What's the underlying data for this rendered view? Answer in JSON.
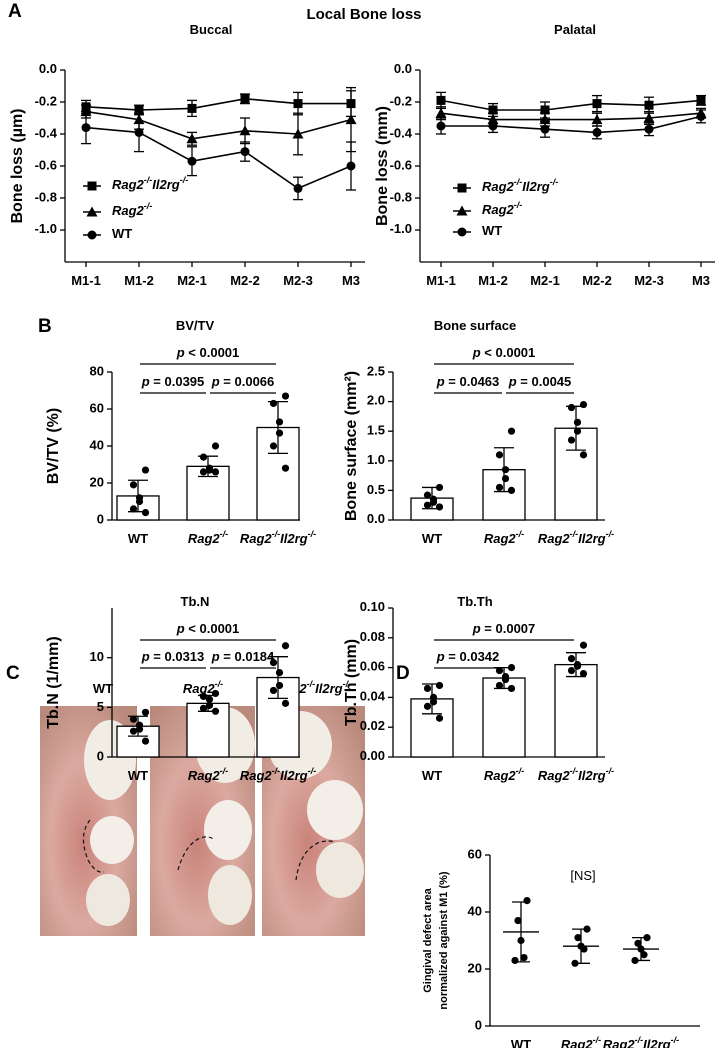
{
  "figure": {
    "title": "Local Bone loss",
    "panel_labels": [
      "A",
      "B",
      "C",
      "D"
    ]
  },
  "photos": {
    "labels": [
      "WT",
      "Rag2-/-",
      "Rag2-/-Il2rg-/-"
    ]
  },
  "chart_data": [
    {
      "type": "line",
      "title": "Buccal",
      "ylabel": "Bone loss (µm)",
      "categories": [
        "M1-1",
        "M1-2",
        "M2-1",
        "M2-2",
        "M2-3",
        "M3"
      ],
      "ylim": [
        -1.2,
        0
      ],
      "yticks": [
        {
          "value": 0,
          "label": "0.0"
        },
        -0.2,
        -0.4,
        -0.6,
        -0.8,
        {
          "value": -1,
          "label": "-1.0"
        }
      ],
      "series": [
        {
          "name": "Rag2-/-Il2rg-/-",
          "color": "#000000",
          "marker": "square",
          "values": [
            -0.23,
            -0.25,
            -0.24,
            -0.18,
            -0.21,
            -0.21
          ],
          "errors": [
            0.04,
            0.03,
            0.05,
            0.03,
            0.07,
            0.08
          ]
        },
        {
          "name": "Rag2-/-",
          "color": "#000000",
          "marker": "triangle",
          "values": [
            -0.26,
            -0.31,
            -0.43,
            -0.38,
            -0.4,
            -0.31
          ],
          "errors": [
            0.04,
            0.06,
            0.04,
            0.08,
            0.13,
            0.2
          ]
        },
        {
          "name": "WT",
          "color": "#000000",
          "marker": "circle",
          "values": [
            -0.36,
            -0.39,
            -0.57,
            -0.51,
            -0.74,
            -0.6
          ],
          "errors": [
            0.1,
            0.12,
            0.09,
            0.06,
            0.07,
            0.15
          ]
        }
      ]
    },
    {
      "type": "line",
      "title": "Palatal",
      "ylabel": "Bone loss (mm)",
      "categories": [
        "M1-1",
        "M1-2",
        "M2-1",
        "M2-2",
        "M2-3",
        "M3"
      ],
      "ylim": [
        -1.2,
        0
      ],
      "yticks": [
        {
          "value": 0,
          "label": "0.0"
        },
        -0.2,
        -0.4,
        -0.6,
        -0.8,
        {
          "value": -1,
          "label": "-1.0"
        }
      ],
      "series": [
        {
          "name": "Rag2-/-Il2rg-/-",
          "color": "#000000",
          "marker": "square",
          "values": [
            -0.19,
            -0.25,
            -0.25,
            -0.21,
            -0.22,
            -0.19
          ],
          "errors": [
            0.05,
            0.04,
            0.05,
            0.05,
            0.05,
            0.03
          ]
        },
        {
          "name": "Rag2-/-",
          "color": "#000000",
          "marker": "triangle",
          "values": [
            -0.27,
            -0.31,
            -0.31,
            -0.31,
            -0.3,
            -0.27
          ],
          "errors": [
            0.04,
            0.04,
            0.04,
            0.04,
            0.04,
            0.03
          ]
        },
        {
          "name": "WT",
          "color": "#000000",
          "marker": "circle",
          "values": [
            -0.35,
            -0.35,
            -0.37,
            -0.39,
            -0.37,
            -0.29
          ],
          "errors": [
            0.05,
            0.04,
            0.05,
            0.04,
            0.04,
            0.04
          ]
        }
      ]
    },
    {
      "type": "bar",
      "title": "BV/TV",
      "ylabel": "BV/TV (%)",
      "categories": [
        "WT",
        "Rag2-/-",
        "Rag2-/-Il2rg-/-"
      ],
      "values": [
        13,
        29,
        50
      ],
      "errors": [
        8.5,
        5.5,
        14
      ],
      "points": [
        [
          27,
          19,
          12,
          10,
          6,
          4
        ],
        [
          40,
          34,
          28,
          27,
          26,
          26
        ],
        [
          67,
          63,
          53,
          47,
          40,
          28
        ]
      ],
      "ylim": [
        0,
        80
      ],
      "yticks": [
        0,
        20,
        40,
        60,
        80
      ],
      "comparisons": [
        {
          "groups": [
            0,
            1
          ],
          "label": "p = 0.0395"
        },
        {
          "groups": [
            1,
            2
          ],
          "label": "p = 0.0066"
        },
        {
          "groups": [
            0,
            2
          ],
          "label": "p < 0.0001"
        }
      ]
    },
    {
      "type": "bar",
      "title": "Bone surface",
      "ylabel": "Bone surface (mm²)",
      "categories": [
        "WT",
        "Rag2-/-",
        "Rag2-/-Il2rg-/-"
      ],
      "values": [
        0.37,
        0.85,
        1.55
      ],
      "errors": [
        0.18,
        0.37,
        0.37
      ],
      "points": [
        [
          0.55,
          0.42,
          0.35,
          0.3,
          0.25,
          0.22
        ],
        [
          1.5,
          1.1,
          0.85,
          0.7,
          0.55,
          0.5
        ],
        [
          1.95,
          1.9,
          1.65,
          1.5,
          1.35,
          1.1
        ]
      ],
      "ylim": [
        0,
        2.5
      ],
      "yticks": [
        {
          "value": 0,
          "label": "0.0"
        },
        0.5,
        {
          "value": 1,
          "label": "1.0"
        },
        1.5,
        {
          "value": 2,
          "label": "2.0"
        },
        2.5
      ],
      "comparisons": [
        {
          "groups": [
            0,
            1
          ],
          "label": "p = 0.0463"
        },
        {
          "groups": [
            1,
            2
          ],
          "label": "p = 0.0045"
        },
        {
          "groups": [
            0,
            2
          ],
          "label": "p < 0.0001"
        }
      ]
    },
    {
      "type": "bar",
      "title": "Tb.N",
      "ylabel": "Tb.N (1/mm)",
      "categories": [
        "WT",
        "Rag2-/-",
        "Rag2-/-Il2rg-/-"
      ],
      "values": [
        3.1,
        5.4,
        8
      ],
      "errors": [
        1,
        0.8,
        2.1
      ],
      "points": [
        [
          4.5,
          3.8,
          3.2,
          2.8,
          2.6,
          1.6
        ],
        [
          6.4,
          6.1,
          5.8,
          5.2,
          4.9,
          4.6
        ],
        [
          11.2,
          9.5,
          8.5,
          7.2,
          6.7,
          5.4
        ]
      ],
      "ylim": [
        0,
        15
      ],
      "yticks": [
        0,
        5,
        10
      ],
      "comparisons": [
        {
          "groups": [
            0,
            1
          ],
          "label": "p = 0.0313"
        },
        {
          "groups": [
            1,
            2
          ],
          "label": "p = 0.0184"
        },
        {
          "groups": [
            0,
            2
          ],
          "label": "p < 0.0001"
        }
      ]
    },
    {
      "type": "bar",
      "title": "Tb.Th",
      "ylabel": "Tb.Th (mm)",
      "categories": [
        "WT",
        "Rag2-/-",
        "Rag2-/-Il2rg-/-"
      ],
      "values": [
        0.039,
        0.053,
        0.062
      ],
      "errors": [
        0.01,
        0.007,
        0.008
      ],
      "points": [
        [
          0.048,
          0.046,
          0.04,
          0.037,
          0.034,
          0.026
        ],
        [
          0.06,
          0.058,
          0.054,
          0.052,
          0.048,
          0.046
        ],
        [
          0.075,
          0.066,
          0.062,
          0.061,
          0.058,
          0.056
        ]
      ],
      "ylim": [
        0,
        0.1
      ],
      "yticks": [
        {
          "value": 0,
          "label": "0.00"
        },
        {
          "value": 0.02,
          "label": "0.02"
        },
        {
          "value": 0.04,
          "label": "0.04"
        },
        {
          "value": 0.06,
          "label": "0.06"
        },
        {
          "value": 0.08,
          "label": "0.08"
        },
        {
          "value": 0.1,
          "label": "0.10"
        }
      ],
      "comparisons": [
        {
          "groups": [
            0,
            1
          ],
          "label": "p = 0.0342"
        },
        {
          "groups": [
            0,
            2
          ],
          "label": "p = 0.0007"
        }
      ]
    },
    {
      "type": "dot",
      "ylabel": [
        "Gingival defect area",
        "normalized against M1 (%)"
      ],
      "annotation": "[NS]",
      "categories": [
        "WT",
        "Rag2-/-",
        "Rag2-/-Il2rg-/-"
      ],
      "values": [
        33,
        28,
        27
      ],
      "errors": [
        10.5,
        6,
        4
      ],
      "points": [
        [
          44,
          37,
          30,
          24,
          23
        ],
        [
          34,
          31,
          28,
          27,
          22
        ],
        [
          31,
          29,
          27,
          25,
          23
        ]
      ],
      "ylim": [
        0,
        60
      ],
      "yticks": [
        0,
        20,
        40,
        60
      ]
    }
  ]
}
